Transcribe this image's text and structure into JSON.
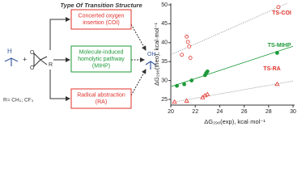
{
  "diagram": {
    "title": "Type Of Transition Structure",
    "boxes": [
      {
        "lines": [
          "Concerted oxygen",
          "insertion (COI)"
        ],
        "color": "#e0302a"
      },
      {
        "lines": [
          "Molecule-induced",
          "homolytic pathway",
          "(MIHP)"
        ],
        "color": "#1e9a3a"
      },
      {
        "lines": [
          "Radical abstraction",
          "(RA)"
        ],
        "color": "#e0302a"
      }
    ],
    "molecule": {
      "h": "H",
      "plus": "+",
      "o1": "O",
      "o2": "O",
      "r": "R",
      "product": "OH",
      "note": "R= CH₃; CF₃"
    }
  },
  "chart_data": {
    "type": "scatter",
    "xlabel": "ΔG₂₉₈(exp), kcal·mol⁻¹",
    "ylabel": "ΔG₂₉₈(theo), kcal·mol⁻¹",
    "xlim": [
      20,
      30
    ],
    "ylim": [
      23.5,
      50
    ],
    "xticks": [
      20,
      22,
      24,
      26,
      28,
      30
    ],
    "yticks": [
      25,
      30,
      35,
      40,
      45,
      50
    ],
    "series": [
      {
        "name": "TS-COI",
        "color": "#e0302a",
        "marker": "open-circle",
        "trend": "dotted",
        "x": [
          20.9,
          21.3,
          21.4,
          21.5,
          21.6,
          28.8
        ],
        "values": [
          36.8,
          41.6,
          40.2,
          39.0,
          36.0,
          49.4
        ]
      },
      {
        "name": "TS-MIHP",
        "color": "#1e9a3a",
        "marker": "filled-circle",
        "trend": "solid",
        "x": [
          20.5,
          21.1,
          21.7,
          22.8,
          22.9,
          23.0,
          28.7
        ],
        "values": [
          28.6,
          29.0,
          30.0,
          31.4,
          32.0,
          32.4,
          37.3
        ]
      },
      {
        "name": "TS-RA",
        "color": "#e0302a",
        "marker": "open-triangle",
        "trend": "dotted",
        "x": [
          20.3,
          21.3,
          22.6,
          22.8,
          23.0,
          28.7
        ],
        "values": [
          24.3,
          24.6,
          25.5,
          26.0,
          26.3,
          29.0
        ]
      }
    ]
  }
}
